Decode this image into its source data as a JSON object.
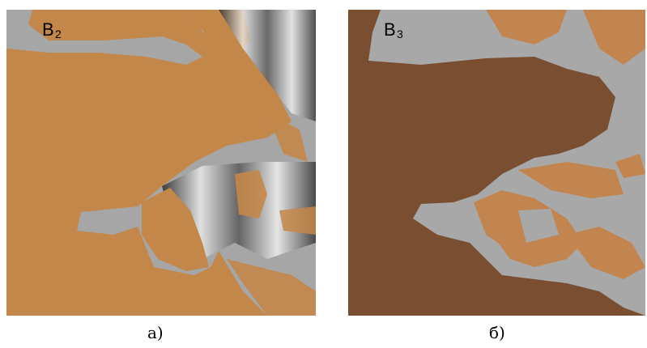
{
  "panels": [
    {
      "label": "B",
      "subscript": "2",
      "caption": "а)"
    },
    {
      "label": "B",
      "subscript": "3",
      "caption": "б)"
    }
  ]
}
